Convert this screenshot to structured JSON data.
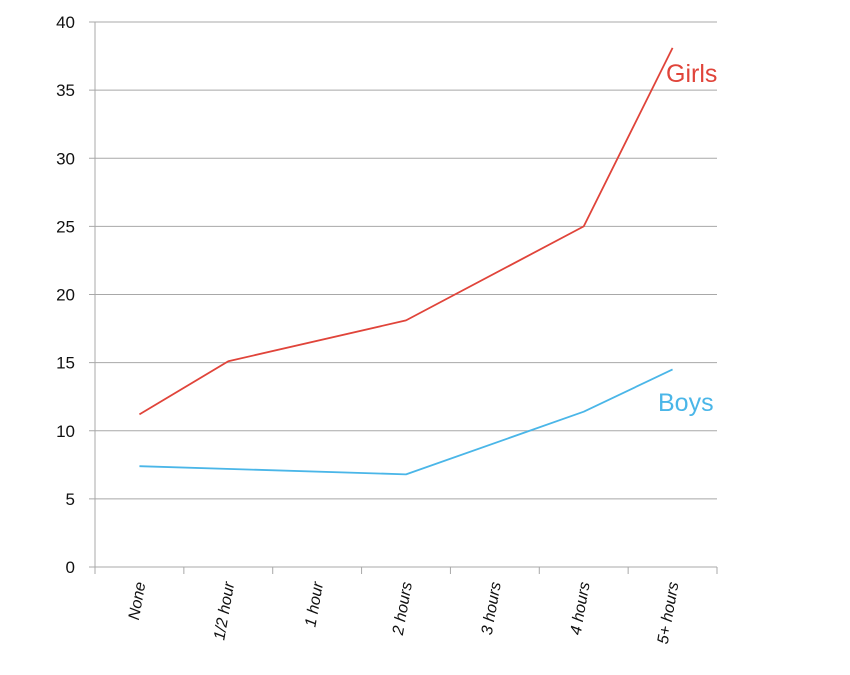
{
  "chart_data": {
    "type": "line",
    "categories": [
      "None",
      "1/2 hour",
      "1 hour",
      "2 hours",
      "3 hours",
      "4 hours",
      "5+ hours"
    ],
    "series": [
      {
        "name": "Girls",
        "color": "#e0443a",
        "values": [
          11.2,
          15.1,
          null,
          18.1,
          null,
          25.0,
          38.1
        ]
      },
      {
        "name": "Boys",
        "color": "#4ab6e8",
        "values": [
          7.4,
          null,
          null,
          6.8,
          null,
          11.4,
          14.5
        ]
      }
    ],
    "ylim": [
      0,
      40
    ],
    "yticks": [
      0,
      5,
      10,
      15,
      20,
      25,
      30,
      35,
      40
    ],
    "grid": true,
    "title": "",
    "xlabel": "",
    "ylabel": ""
  }
}
